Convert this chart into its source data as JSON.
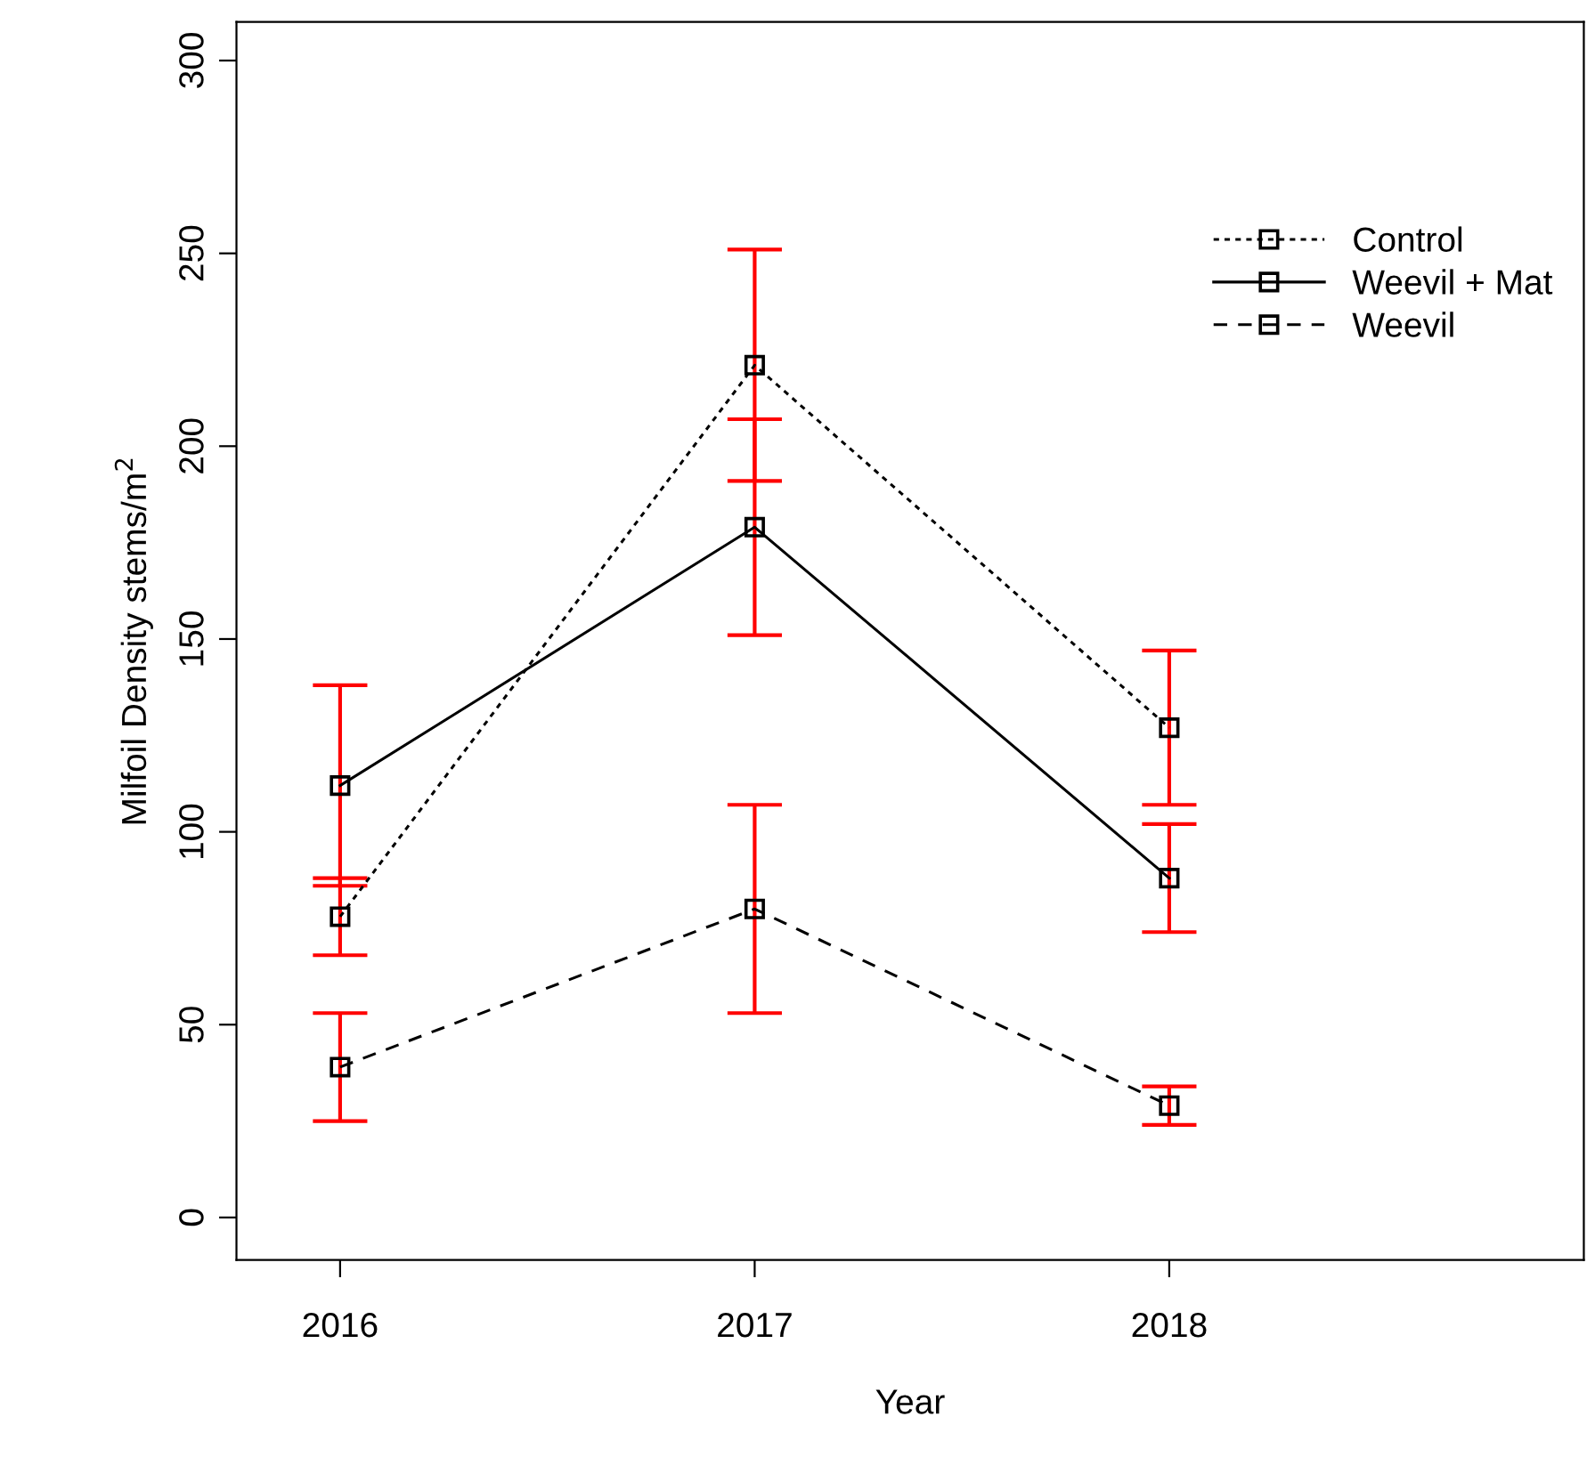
{
  "chart_data": {
    "type": "line",
    "xlabel": "Year",
    "ylabel": "Milfoil Density stems/m$^{2}$",
    "x": [
      2016,
      2017,
      2018
    ],
    "xlim": [
      2015.75,
      2019.0
    ],
    "xticks": [
      2016,
      2017,
      2018
    ],
    "ylim": [
      -11,
      310
    ],
    "yticks": [
      0,
      50,
      100,
      150,
      200,
      250,
      300
    ],
    "marker": "square",
    "legend": "top right",
    "grid": false,
    "series": [
      {
        "name": "Control",
        "color": "#000000",
        "line_style": "dotted",
        "values": [
          78,
          221,
          127
        ],
        "errors": [
          10,
          30,
          20
        ]
      },
      {
        "name": "Weevil + Mat",
        "color": "#000000",
        "line_style": "solid",
        "values": [
          112,
          179,
          88
        ],
        "errors": [
          26,
          28,
          14
        ]
      },
      {
        "name": "Weevil",
        "color": "#000000",
        "line_style": "dashed",
        "values": [
          39,
          80,
          29
        ],
        "errors": [
          14,
          27,
          5
        ]
      }
    ]
  }
}
